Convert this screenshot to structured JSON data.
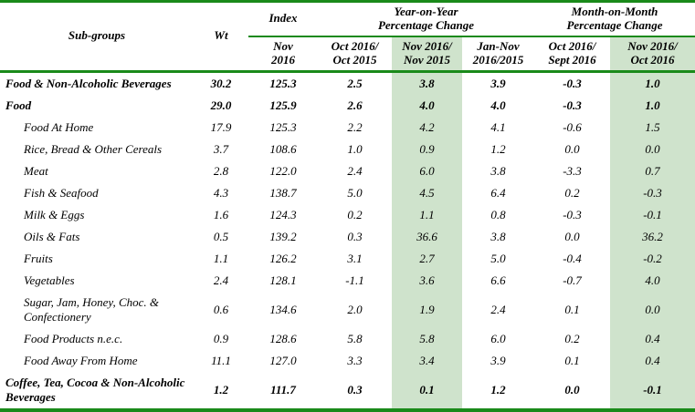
{
  "colors": {
    "line_green": "#1a8a1a",
    "highlight_green": "#cfe3cc"
  },
  "table": {
    "headers": {
      "subgroups": "Sub-groups",
      "wt": "Wt",
      "index_group": "Index",
      "yoy_group": "Year-on-Year\nPercentage Change",
      "mom_group": "Month-on-Month\nPercentage Change",
      "index_sub": "Nov\n2016",
      "yoy_cols": [
        "Oct 2016/\nOct 2015",
        "Nov 2016/\nNov 2015",
        "Jan-Nov\n2016/2015"
      ],
      "mom_cols": [
        "Oct 2016/\nSept 2016",
        "Nov 2016/\nOct 2016"
      ]
    },
    "rows": [
      {
        "name": "Food & Non-Alcoholic Beverages",
        "level": "group",
        "values": [
          "30.2",
          "125.3",
          "2.5",
          "3.8",
          "3.9",
          "-0.3",
          "1.0"
        ]
      },
      {
        "name": "Food",
        "level": "group",
        "values": [
          "29.0",
          "125.9",
          "2.6",
          "4.0",
          "4.0",
          "-0.3",
          "1.0"
        ]
      },
      {
        "name": "Food At Home",
        "level": "sub",
        "values": [
          "17.9",
          "125.3",
          "2.2",
          "4.2",
          "4.1",
          "-0.6",
          "1.5"
        ]
      },
      {
        "name": "Rice, Bread & Other Cereals",
        "level": "sub",
        "values": [
          "3.7",
          "108.6",
          "1.0",
          "0.9",
          "1.2",
          "0.0",
          "0.0"
        ]
      },
      {
        "name": "Meat",
        "level": "sub",
        "values": [
          "2.8",
          "122.0",
          "2.4",
          "6.0",
          "3.8",
          "-3.3",
          "0.7"
        ]
      },
      {
        "name": "Fish & Seafood",
        "level": "sub",
        "values": [
          "4.3",
          "138.7",
          "5.0",
          "4.5",
          "6.4",
          "0.2",
          "-0.3"
        ]
      },
      {
        "name": "Milk & Eggs",
        "level": "sub",
        "values": [
          "1.6",
          "124.3",
          "0.2",
          "1.1",
          "0.8",
          "-0.3",
          "-0.1"
        ]
      },
      {
        "name": "Oils & Fats",
        "level": "sub",
        "values": [
          "0.5",
          "139.2",
          "0.3",
          "36.6",
          "3.8",
          "0.0",
          "36.2"
        ]
      },
      {
        "name": "Fruits",
        "level": "sub",
        "values": [
          "1.1",
          "126.2",
          "3.1",
          "2.7",
          "5.0",
          "-0.4",
          "-0.2"
        ]
      },
      {
        "name": "Vegetables",
        "level": "sub",
        "values": [
          "2.4",
          "128.1",
          "-1.1",
          "3.6",
          "6.6",
          "-0.7",
          "4.0"
        ]
      },
      {
        "name": "Sugar, Jam, Honey, Choc. & Confectionery",
        "level": "sub",
        "values": [
          "0.6",
          "134.6",
          "2.0",
          "1.9",
          "2.4",
          "0.1",
          "0.0"
        ]
      },
      {
        "name": "Food Products n.e.c.",
        "level": "sub",
        "values": [
          "0.9",
          "128.6",
          "5.8",
          "5.8",
          "6.0",
          "0.2",
          "0.4"
        ]
      },
      {
        "name": "Food Away From Home",
        "level": "sub",
        "values": [
          "11.1",
          "127.0",
          "3.3",
          "3.4",
          "3.9",
          "0.1",
          "0.4"
        ]
      },
      {
        "name": "Coffee, Tea, Cocoa & Non-Alcoholic Beverages",
        "level": "group",
        "values": [
          "1.2",
          "111.7",
          "0.3",
          "0.1",
          "1.2",
          "0.0",
          "-0.1"
        ]
      }
    ]
  }
}
